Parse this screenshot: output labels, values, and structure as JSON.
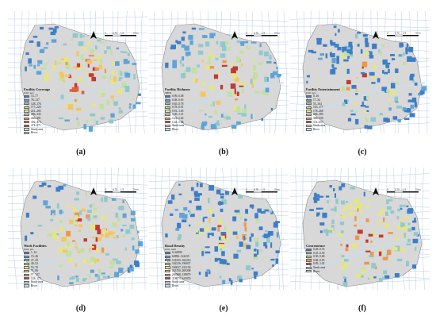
{
  "common": {
    "north_label": "N",
    "scale_labels": [
      "0",
      "0.75",
      "1.5",
      "3 km"
    ],
    "study_area_label": "Study area",
    "river_label": "River",
    "colors": {
      "study_area": "#d8d8d8",
      "river": "#c6dff0",
      "road": "#b9cde6",
      "outline": "#888888"
    }
  },
  "panels": [
    {
      "id": "a",
      "caption": "(a)",
      "legend_title": "Facility Coverage",
      "unit": "Unit: pcs",
      "classes": [
        {
          "label": "13–77",
          "color": "#3d7ec8"
        },
        {
          "label": "78–127",
          "color": "#5fa4d8"
        },
        {
          "label": "128–176",
          "color": "#8fc9cc"
        },
        {
          "label": "177–220",
          "color": "#c2e0a0"
        },
        {
          "label": "221–285",
          "color": "#e6e77a"
        },
        {
          "label": "286–335",
          "color": "#f2c760"
        },
        {
          "label": "336–391",
          "color": "#f0964a"
        },
        {
          "label": "392–473",
          "color": "#e0603a"
        },
        {
          "label": "474–671",
          "color": "#c23a2e"
        }
      ]
    },
    {
      "id": "b",
      "caption": "(b)",
      "legend_title": "Facility Richness",
      "unit": "SHDI",
      "classes": [
        {
          "label": "0.09–0.48",
          "color": "#3d7ec8"
        },
        {
          "label": "0.48–0.65",
          "color": "#5fa4d8"
        },
        {
          "label": "0.65–0.78",
          "color": "#8fc9cc"
        },
        {
          "label": "0.78–0.91",
          "color": "#c2e0a0"
        },
        {
          "label": "0.91–1.05",
          "color": "#e6e77a"
        },
        {
          "label": "1.05–1.21",
          "color": "#f2c760"
        },
        {
          "label": "1.21–1.44",
          "color": "#f0964a"
        },
        {
          "label": "1.44–1.68",
          "color": "#c23a2e"
        }
      ]
    },
    {
      "id": "c",
      "caption": "(c)",
      "legend_title": "Facility Entertainment",
      "unit": "Unit: pcs",
      "classes": [
        {
          "label": "0–16",
          "color": "#3d7ec8"
        },
        {
          "label": "17–54",
          "color": "#5fa4d8"
        },
        {
          "label": "55–104",
          "color": "#8fc9cc"
        },
        {
          "label": "105–177",
          "color": "#c2e0a0"
        },
        {
          "label": "178–268",
          "color": "#e6e77a"
        },
        {
          "label": "269–385",
          "color": "#f2c760"
        },
        {
          "label": "386–530",
          "color": "#f0964a"
        },
        {
          "label": "531–817",
          "color": "#c23a2e"
        }
      ]
    },
    {
      "id": "d",
      "caption": "(d)",
      "legend_title": "Work Facilities",
      "unit": "Unit: pcs",
      "classes": [
        {
          "label": "1–14",
          "color": "#3d7ec8"
        },
        {
          "label": "15–26",
          "color": "#5fa4d8"
        },
        {
          "label": "27–39",
          "color": "#8fc9cc"
        },
        {
          "label": "40–52",
          "color": "#c2e0a0"
        },
        {
          "label": "53–70",
          "color": "#e6e77a"
        },
        {
          "label": "71–96",
          "color": "#f2c760"
        },
        {
          "label": "97–127",
          "color": "#f0964a"
        },
        {
          "label": "128–172",
          "color": "#c23a2e"
        }
      ]
    },
    {
      "id": "e",
      "caption": "(e)",
      "legend_title": "Road Density",
      "unit": "Unit: 1km",
      "classes": [
        {
          "label": "0–62896",
          "color": "#3d7ec8"
        },
        {
          "label": "62896–122235",
          "color": "#5fa4d8"
        },
        {
          "label": "122235–162216",
          "color": "#8fc9cc"
        },
        {
          "label": "162216–196037",
          "color": "#c2e0a0"
        },
        {
          "label": "196037–233150",
          "color": "#e6e77a"
        },
        {
          "label": "233150–269208",
          "color": "#f2c760"
        },
        {
          "label": "269208–318879",
          "color": "#f0964a"
        },
        {
          "label": "318879–613976",
          "color": "#c23a2e"
        }
      ]
    },
    {
      "id": "f",
      "caption": "(f)",
      "legend_title": "Convenience",
      "unit": "",
      "classes": [
        {
          "label": "0.28–0.35",
          "color": "#3d7ec8"
        },
        {
          "label": "0.35–0.50",
          "color": "#8fc9cc"
        },
        {
          "label": "0.50–0.68",
          "color": "#e6e77a"
        },
        {
          "label": "0.68–0.85",
          "color": "#f0964a"
        },
        {
          "label": "0.85–1.02",
          "color": "#c23a2e"
        }
      ]
    }
  ]
}
